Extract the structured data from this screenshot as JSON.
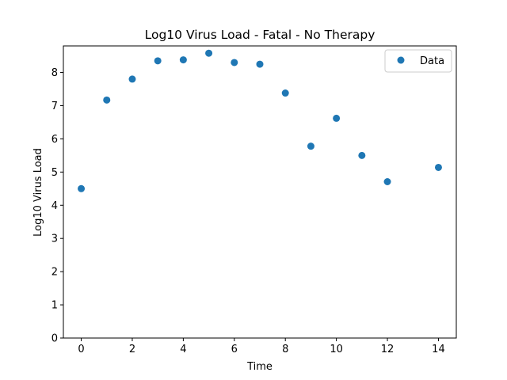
{
  "chart_data": {
    "type": "scatter",
    "title": "Log10 Virus Load - Fatal - No Therapy",
    "xlabel": "Time",
    "ylabel": "Log10 Virus Load",
    "xlim": [
      -0.7,
      14.7
    ],
    "ylim": [
      0,
      8.8
    ],
    "xticks": [
      0,
      2,
      4,
      6,
      8,
      10,
      12,
      14
    ],
    "yticks": [
      0,
      1,
      2,
      3,
      4,
      5,
      6,
      7,
      8
    ],
    "grid": false,
    "legend_position": "top-right",
    "series": [
      {
        "name": "Data",
        "color": "#1f77b4",
        "marker": "circle",
        "x": [
          0,
          1,
          2,
          3,
          4,
          5,
          6,
          7,
          8,
          9,
          10,
          11,
          12,
          14
        ],
        "y": [
          4.5,
          7.17,
          7.8,
          8.35,
          8.38,
          8.58,
          8.3,
          8.25,
          7.38,
          5.78,
          6.62,
          5.5,
          4.71,
          5.14
        ]
      }
    ]
  }
}
